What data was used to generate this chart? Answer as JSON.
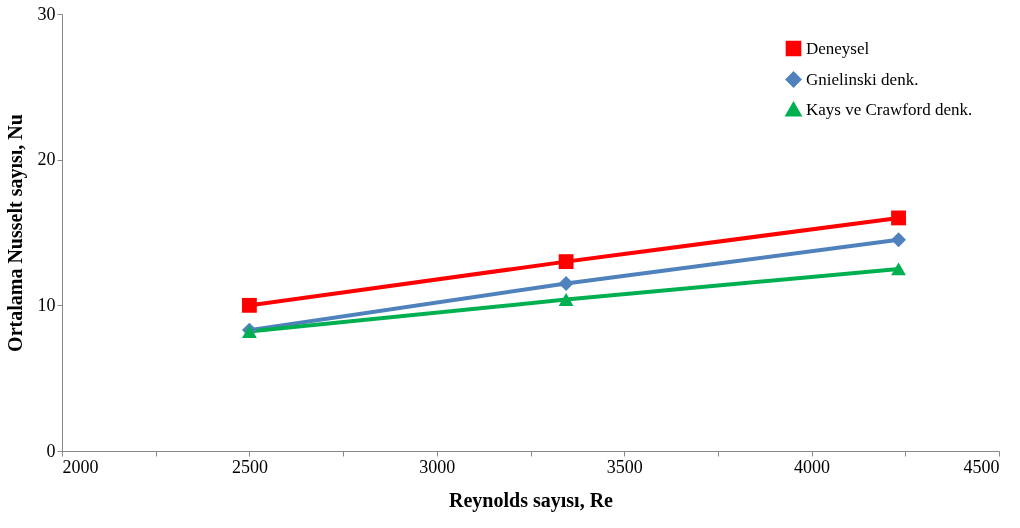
{
  "chart_data": {
    "type": "line",
    "xlabel": "Reynolds sayısı,  Re",
    "ylabel": "Ortalama Nusselt  sayısı, Nu",
    "x": [
      2500,
      3345,
      4232
    ],
    "series": [
      {
        "name": "Deneysel",
        "color": "#ff0000",
        "marker": "square",
        "values": [
          10.0,
          13.0,
          16.0
        ]
      },
      {
        "name": "Gnielinski denk.",
        "color": "#4f81bd",
        "marker": "diamond",
        "values": [
          8.3,
          11.5,
          14.5
        ]
      },
      {
        "name": "Kays ve Crawford denk.",
        "color": "#00b050",
        "marker": "triangle",
        "values": [
          8.2,
          10.4,
          12.5
        ]
      }
    ],
    "xlim": [
      2000,
      4500
    ],
    "xticks": [
      2000,
      {
        "value": 2250,
        "label": null
      },
      2500,
      {
        "value": 2750,
        "label": null
      },
      3000,
      {
        "value": 3250,
        "label": null
      },
      3500,
      {
        "value": 3750,
        "label": null
      },
      4000,
      {
        "value": 4250,
        "label": null
      },
      4500
    ],
    "ylim": [
      0,
      30
    ],
    "yticks": [
      0,
      10,
      20,
      30
    ],
    "grid": false,
    "legend": "top right",
    "line_style": "solid"
  }
}
